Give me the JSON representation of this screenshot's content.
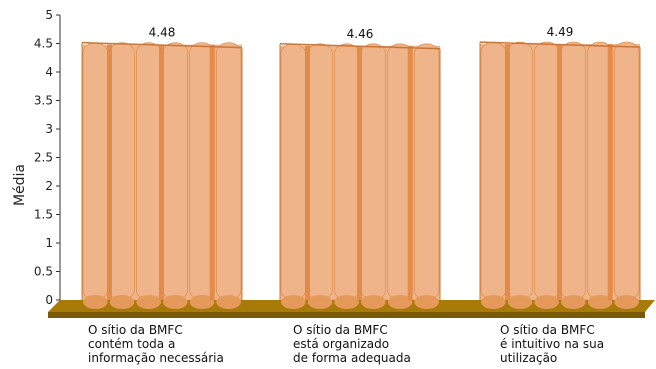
{
  "chart_data": {
    "type": "bar",
    "ylabel": "Média",
    "ylim": [
      0,
      5
    ],
    "yticks": [
      "0",
      "0.5",
      "1",
      "1.5",
      "2",
      "2.5",
      "3",
      "3.5",
      "4",
      "4.5",
      "5"
    ],
    "categories": [
      [
        "O sítio da BMFC",
        "contém  toda a",
        "informação necessária"
      ],
      [
        "O sítio da BMFC",
        "está organizado",
        "de forma adequada"
      ],
      [
        "O sítio da BMFC",
        "é intuitivo  na sua",
        "utilização"
      ]
    ],
    "values": [
      4.48,
      4.46,
      4.49
    ],
    "value_labels": [
      "4.48",
      "4.46",
      "4.49"
    ],
    "grid": false,
    "colors": {
      "bar_fill": "#f0b48a",
      "bar_seam": "#e2863f",
      "bar_edge": "#d8863e",
      "floor_top": "#a87a08",
      "floor_front": "#7a5a06",
      "axis": "#333333"
    }
  }
}
